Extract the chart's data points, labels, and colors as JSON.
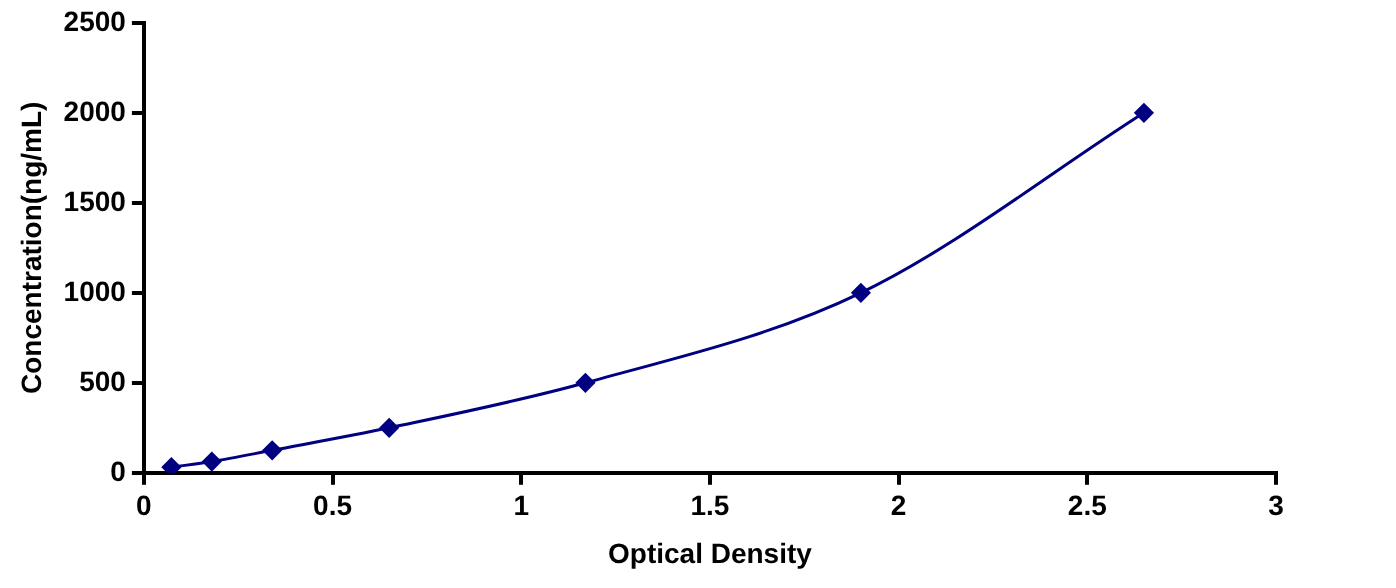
{
  "chart_data": {
    "type": "line",
    "xlabel": "Optical Density",
    "ylabel": "Concentration(ng/mL)",
    "x": [
      0.073,
      0.18,
      0.34,
      0.65,
      1.17,
      1.9,
      2.65
    ],
    "series": [
      {
        "color": "#000080",
        "values": [
          31.25,
          62.5,
          125,
          250,
          500,
          1000,
          2000
        ]
      }
    ],
    "xlim": [
      0,
      3
    ],
    "xticks": [
      0,
      0.5,
      1,
      1.5,
      2,
      2.5,
      3
    ],
    "ylim": [
      0,
      2500
    ],
    "yticks": [
      0,
      500,
      1000,
      1500,
      2000,
      2500
    ],
    "grid": false,
    "legend": false,
    "marker": "diamond",
    "line_style": "solid"
  }
}
